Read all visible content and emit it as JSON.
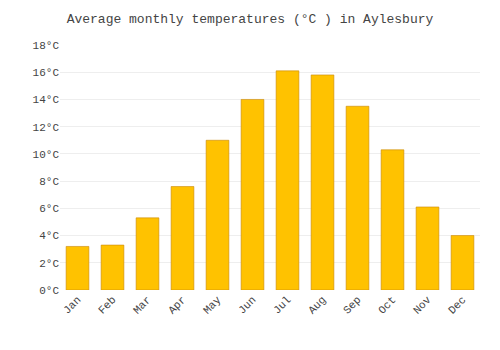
{
  "chart_data": {
    "type": "bar",
    "title": "Average monthly temperatures (°C ) in Aylesbury",
    "categories": [
      "Jan",
      "Feb",
      "Mar",
      "Apr",
      "May",
      "Jun",
      "Jul",
      "Aug",
      "Sep",
      "Oct",
      "Nov",
      "Dec"
    ],
    "values": [
      3.2,
      3.3,
      5.3,
      7.6,
      11.0,
      14.0,
      16.1,
      15.8,
      13.5,
      10.3,
      6.1,
      4.0
    ],
    "color": "#FFC200",
    "ylim": [
      0,
      18
    ],
    "yticks": [
      {
        "value": 0,
        "label": "0°C"
      },
      {
        "value": 2,
        "label": "2°C"
      },
      {
        "value": 4,
        "label": "4°C"
      },
      {
        "value": 6,
        "label": "6°C"
      },
      {
        "value": 8,
        "label": "8°C"
      },
      {
        "value": 10,
        "label": "10°C"
      },
      {
        "value": 12,
        "label": "12°C"
      },
      {
        "value": 14,
        "label": "14°C"
      },
      {
        "value": 16,
        "label": "16°C"
      },
      {
        "value": 18,
        "label": "18°C"
      }
    ],
    "grid": true
  }
}
